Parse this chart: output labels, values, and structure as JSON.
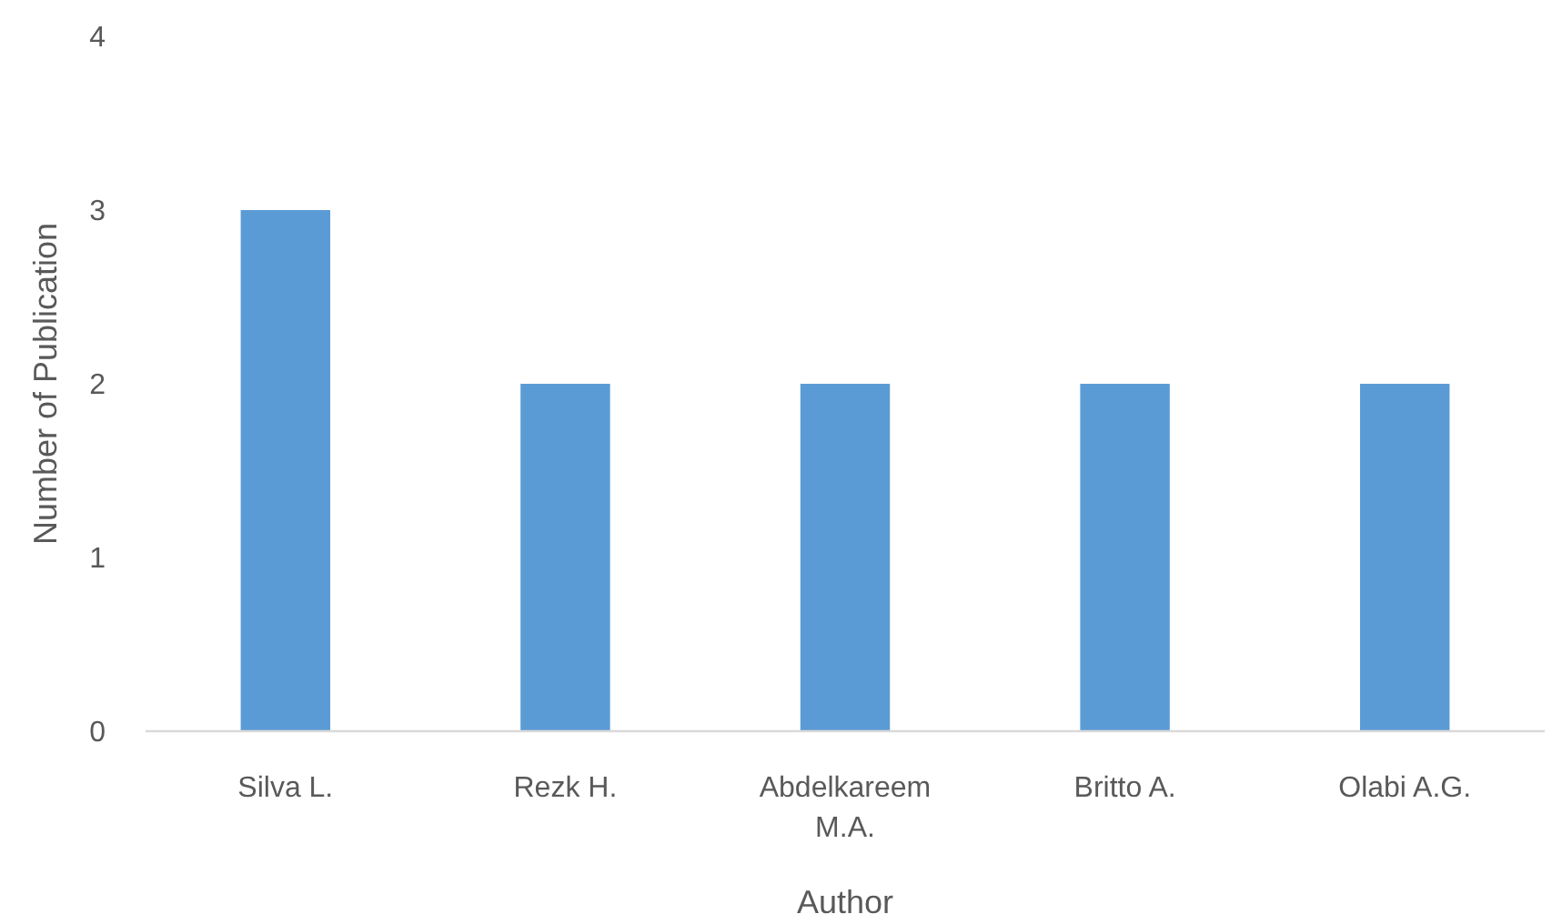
{
  "chart_data": {
    "type": "bar",
    "xlabel": "Author",
    "ylabel": "Number of Publication",
    "categories": [
      "Silva L.",
      "Rezk H.",
      "Abdelkareem M.A.",
      "Britto A.",
      "Olabi A.G."
    ],
    "values": [
      3,
      2,
      2,
      2,
      2
    ],
    "color": "#5b9bd5",
    "ylim": [
      0,
      4
    ],
    "yticks": [
      0,
      1,
      2,
      3,
      4
    ],
    "grid": false
  }
}
